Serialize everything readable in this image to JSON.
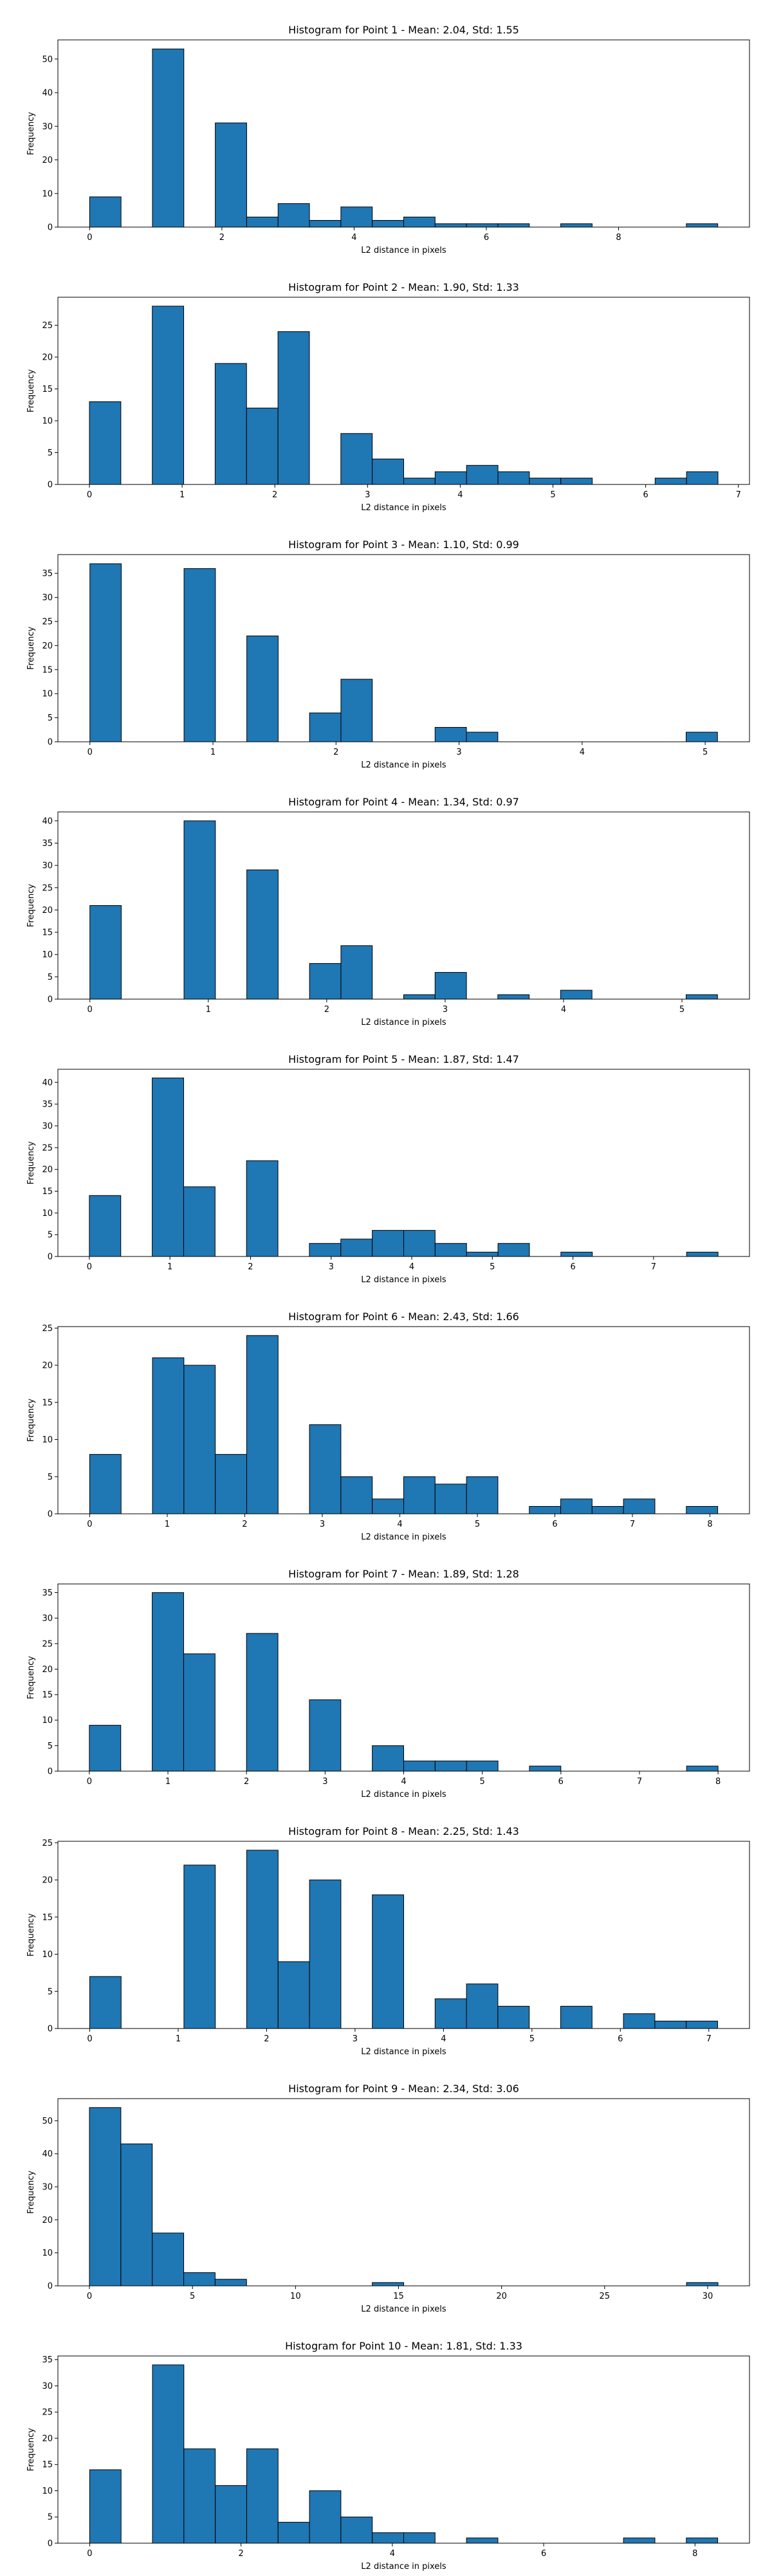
{
  "chart_data": [
    {
      "type": "bar",
      "title": "Histogram for Point 1 - Mean: 2.04, Std: 1.55",
      "xlabel": "L2 distance in pixels",
      "ylabel": "Frequency",
      "bin_edges": [
        0,
        0.475,
        0.95,
        1.425,
        1.9,
        2.375,
        2.85,
        3.325,
        3.8,
        4.275,
        4.75,
        5.225,
        5.7,
        6.175,
        6.65,
        7.125,
        7.6,
        8.075,
        8.55,
        9.025,
        9.5
      ],
      "values": [
        9,
        0,
        53,
        0,
        31,
        3,
        7,
        2,
        6,
        2,
        3,
        1,
        1,
        1,
        0,
        1,
        0,
        0,
        0,
        1
      ],
      "xlim": [
        -0.48,
        9.98
      ],
      "ylim": [
        0,
        55.7
      ],
      "xticks": [
        0,
        2,
        4,
        6,
        8
      ],
      "yticks": [
        0,
        10,
        20,
        30,
        40,
        50
      ],
      "bar_color": "#1f77b4",
      "edge_color": "#000000",
      "grid": false,
      "legend": "none"
    },
    {
      "type": "bar",
      "title": "Histogram for Point 2 - Mean: 1.90, Std: 1.33",
      "xlabel": "L2 distance in pixels",
      "ylabel": "Frequency",
      "bin_edges": [
        0,
        0.339,
        0.678,
        1.017,
        1.356,
        1.695,
        2.034,
        2.373,
        2.712,
        3.051,
        3.39,
        3.729,
        4.068,
        4.407,
        4.746,
        5.085,
        5.424,
        5.763,
        6.102,
        6.441,
        6.78
      ],
      "values": [
        13,
        0,
        28,
        0,
        19,
        12,
        24,
        0,
        8,
        4,
        1,
        2,
        3,
        2,
        1,
        1,
        0,
        0,
        1,
        2
      ],
      "xlim": [
        -0.34,
        7.12
      ],
      "ylim": [
        0,
        29.4
      ],
      "xticks": [
        0,
        1,
        2,
        3,
        4,
        5,
        6,
        7
      ],
      "yticks": [
        0,
        5,
        10,
        15,
        20,
        25
      ],
      "bar_color": "#1f77b4",
      "edge_color": "#000000",
      "grid": false,
      "legend": "none"
    },
    {
      "type": "bar",
      "title": "Histogram for Point 3 - Mean: 1.10, Std: 0.99",
      "xlabel": "L2 distance in pixels",
      "ylabel": "Frequency",
      "bin_edges": [
        0,
        0.255,
        0.51,
        0.765,
        1.02,
        1.275,
        1.53,
        1.785,
        2.04,
        2.295,
        2.55,
        2.805,
        3.06,
        3.315,
        3.57,
        3.825,
        4.08,
        4.335,
        4.59,
        4.845,
        5.1
      ],
      "values": [
        37,
        0,
        0,
        36,
        0,
        22,
        0,
        6,
        13,
        0,
        0,
        3,
        2,
        0,
        0,
        0,
        0,
        0,
        0,
        2
      ],
      "xlim": [
        -0.26,
        5.36
      ],
      "ylim": [
        0,
        38.9
      ],
      "xticks": [
        0,
        1,
        2,
        3,
        4,
        5
      ],
      "yticks": [
        0,
        5,
        10,
        15,
        20,
        25,
        30,
        35
      ],
      "bar_color": "#1f77b4",
      "edge_color": "#000000",
      "grid": false,
      "legend": "none"
    },
    {
      "type": "bar",
      "title": "Histogram for Point 4 - Mean: 1.34, Std: 0.97",
      "xlabel": "L2 distance in pixels",
      "ylabel": "Frequency",
      "bin_edges": [
        0,
        0.265,
        0.53,
        0.795,
        1.06,
        1.325,
        1.59,
        1.855,
        2.12,
        2.385,
        2.65,
        2.915,
        3.18,
        3.445,
        3.71,
        3.975,
        4.24,
        4.505,
        4.77,
        5.035,
        5.3
      ],
      "values": [
        21,
        0,
        0,
        40,
        0,
        29,
        0,
        8,
        12,
        0,
        1,
        6,
        0,
        1,
        0,
        2,
        0,
        0,
        0,
        1
      ],
      "xlim": [
        -0.27,
        5.57
      ],
      "ylim": [
        0,
        42
      ],
      "xticks": [
        0,
        1,
        2,
        3,
        4,
        5
      ],
      "yticks": [
        0,
        5,
        10,
        15,
        20,
        25,
        30,
        35,
        40
      ],
      "bar_color": "#1f77b4",
      "edge_color": "#000000",
      "grid": false,
      "legend": "none"
    },
    {
      "type": "bar",
      "title": "Histogram for Point 5 - Mean: 1.87, Std: 1.47",
      "xlabel": "L2 distance in pixels",
      "ylabel": "Frequency",
      "bin_edges": [
        0,
        0.39,
        0.78,
        1.17,
        1.56,
        1.95,
        2.34,
        2.73,
        3.12,
        3.51,
        3.9,
        4.29,
        4.68,
        5.07,
        5.46,
        5.85,
        6.24,
        6.63,
        7.02,
        7.41,
        7.8
      ],
      "values": [
        14,
        0,
        41,
        16,
        0,
        22,
        0,
        3,
        4,
        6,
        6,
        3,
        1,
        3,
        0,
        1,
        0,
        0,
        0,
        1
      ],
      "xlim": [
        -0.39,
        8.19
      ],
      "ylim": [
        0,
        43
      ],
      "xticks": [
        0,
        1,
        2,
        3,
        4,
        5,
        6,
        7
      ],
      "yticks": [
        0,
        5,
        10,
        15,
        20,
        25,
        30,
        35,
        40
      ],
      "bar_color": "#1f77b4",
      "edge_color": "#000000",
      "grid": false,
      "legend": "none"
    },
    {
      "type": "bar",
      "title": "Histogram for Point 6 - Mean: 2.43, Std: 1.66",
      "xlabel": "L2 distance in pixels",
      "ylabel": "Frequency",
      "bin_edges": [
        0,
        0.405,
        0.81,
        1.215,
        1.62,
        2.025,
        2.43,
        2.835,
        3.24,
        3.645,
        4.05,
        4.455,
        4.86,
        5.265,
        5.67,
        6.075,
        6.48,
        6.885,
        7.29,
        7.695,
        8.1
      ],
      "values": [
        8,
        0,
        21,
        20,
        8,
        24,
        0,
        12,
        5,
        2,
        5,
        4,
        5,
        0,
        1,
        2,
        1,
        2,
        0,
        1
      ],
      "xlim": [
        -0.41,
        8.51
      ],
      "ylim": [
        0,
        25.2
      ],
      "xticks": [
        0,
        1,
        2,
        3,
        4,
        5,
        6,
        7,
        8
      ],
      "yticks": [
        0,
        5,
        10,
        15,
        20,
        25
      ],
      "bar_color": "#1f77b4",
      "edge_color": "#000000",
      "grid": false,
      "legend": "none"
    },
    {
      "type": "bar",
      "title": "Histogram for Point 7 - Mean: 1.89, Std: 1.28",
      "xlabel": "L2 distance in pixels",
      "ylabel": "Frequency",
      "bin_edges": [
        0,
        0.4,
        0.8,
        1.2,
        1.6,
        2.0,
        2.4,
        2.8,
        3.2,
        3.6,
        4.0,
        4.4,
        4.8,
        5.2,
        5.6,
        6.0,
        6.4,
        6.8,
        7.2,
        7.6,
        8.0
      ],
      "values": [
        9,
        0,
        35,
        23,
        0,
        27,
        0,
        14,
        0,
        5,
        2,
        2,
        2,
        0,
        1,
        0,
        0,
        0,
        0,
        1
      ],
      "xlim": [
        -0.4,
        8.4
      ],
      "ylim": [
        0,
        36.7
      ],
      "xticks": [
        0,
        1,
        2,
        3,
        4,
        5,
        6,
        7,
        8
      ],
      "yticks": [
        0,
        5,
        10,
        15,
        20,
        25,
        30,
        35
      ],
      "bar_color": "#1f77b4",
      "edge_color": "#000000",
      "grid": false,
      "legend": "none"
    },
    {
      "type": "bar",
      "title": "Histogram for Point 8 - Mean: 2.25, Std: 1.43",
      "xlabel": "L2 distance in pixels",
      "ylabel": "Frequency",
      "bin_edges": [
        0,
        0.355,
        0.71,
        1.065,
        1.42,
        1.775,
        2.13,
        2.485,
        2.84,
        3.195,
        3.55,
        3.905,
        4.26,
        4.615,
        4.97,
        5.325,
        5.68,
        6.035,
        6.39,
        6.745,
        7.1
      ],
      "values": [
        7,
        0,
        0,
        22,
        0,
        24,
        9,
        20,
        0,
        18,
        0,
        4,
        6,
        3,
        0,
        3,
        0,
        2,
        1,
        1
      ],
      "xlim": [
        -0.36,
        7.46
      ],
      "ylim": [
        0,
        25.2
      ],
      "xticks": [
        0,
        1,
        2,
        3,
        4,
        5,
        6,
        7
      ],
      "yticks": [
        0,
        5,
        10,
        15,
        20,
        25
      ],
      "bar_color": "#1f77b4",
      "edge_color": "#000000",
      "grid": false,
      "legend": "none"
    },
    {
      "type": "bar",
      "title": "Histogram for Point 9 - Mean: 2.34, Std: 3.06",
      "xlabel": "L2 distance in pixels",
      "ylabel": "Frequency",
      "bin_edges": [
        0,
        1.525,
        3.05,
        4.575,
        6.1,
        7.625,
        9.15,
        10.675,
        12.2,
        13.725,
        15.25,
        16.775,
        18.3,
        19.825,
        21.35,
        22.875,
        24.4,
        25.925,
        27.45,
        28.975,
        30.5
      ],
      "values": [
        54,
        43,
        16,
        4,
        2,
        0,
        0,
        0,
        0,
        1,
        0,
        0,
        0,
        0,
        0,
        0,
        0,
        0,
        0,
        1
      ],
      "xlim": [
        -1.53,
        32.03
      ],
      "ylim": [
        0,
        56.7
      ],
      "xticks": [
        0,
        5,
        10,
        15,
        20,
        25,
        30
      ],
      "yticks": [
        0,
        10,
        20,
        30,
        40,
        50
      ],
      "bar_color": "#1f77b4",
      "edge_color": "#000000",
      "grid": false,
      "legend": "none"
    },
    {
      "type": "bar",
      "title": "Histogram for Point 10 - Mean: 1.81, Std: 1.33",
      "xlabel": "L2 distance in pixels",
      "ylabel": "Frequency",
      "bin_edges": [
        0,
        0.415,
        0.83,
        1.245,
        1.66,
        2.075,
        2.49,
        2.905,
        3.32,
        3.735,
        4.15,
        4.565,
        4.98,
        5.395,
        5.81,
        6.225,
        6.64,
        7.055,
        7.47,
        7.885,
        8.3
      ],
      "values": [
        14,
        0,
        34,
        18,
        11,
        18,
        4,
        10,
        5,
        2,
        2,
        0,
        1,
        0,
        0,
        0,
        0,
        1,
        0,
        1
      ],
      "xlim": [
        -0.42,
        8.72
      ],
      "ylim": [
        0,
        35.7
      ],
      "xticks": [
        0,
        2,
        4,
        6,
        8
      ],
      "yticks": [
        0,
        5,
        10,
        15,
        20,
        25,
        30,
        35
      ],
      "bar_color": "#1f77b4",
      "edge_color": "#000000",
      "grid": false,
      "legend": "none"
    }
  ]
}
